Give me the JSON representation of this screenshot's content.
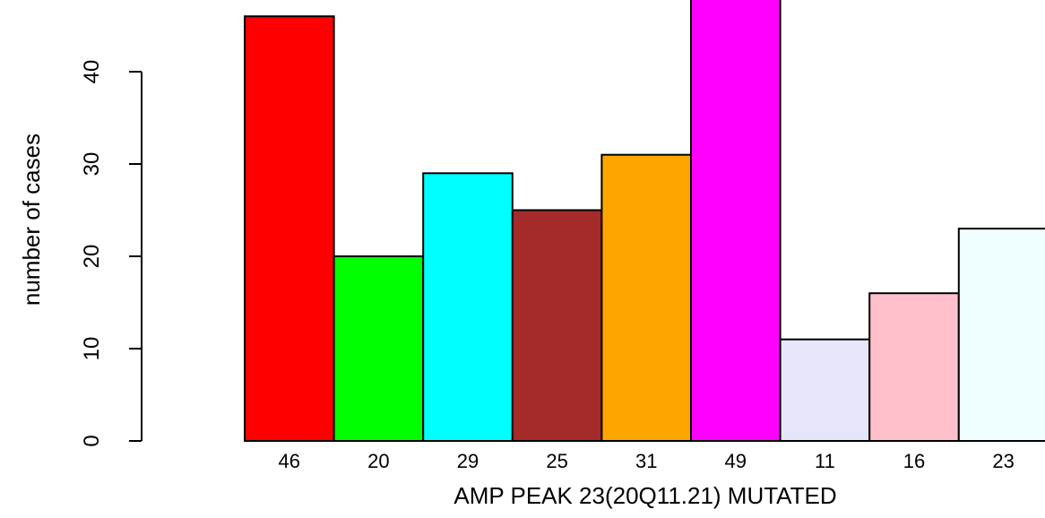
{
  "chart_data": {
    "type": "bar",
    "title": "",
    "xlabel": "AMP PEAK 23(20Q11.21) MUTATED",
    "ylabel": "number of cases",
    "categories": [
      "46",
      "20",
      "29",
      "25",
      "31",
      "49",
      "11",
      "16",
      "23"
    ],
    "values": [
      46,
      20,
      29,
      25,
      31,
      49,
      11,
      16,
      23
    ],
    "colors": [
      "#ff0000",
      "#00ff00",
      "#00ffff",
      "#a52a2a",
      "#ffa500",
      "#ff00ff",
      "#e6e6fa",
      "#ffc0cb",
      "#f0ffff"
    ],
    "ylim": [
      0,
      46
    ],
    "yticks": [
      0,
      10,
      20,
      30,
      40
    ],
    "grid": false,
    "legend": "none"
  }
}
